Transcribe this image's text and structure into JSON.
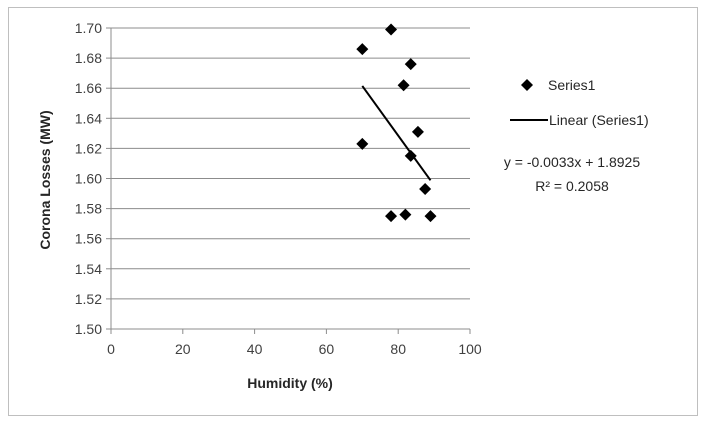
{
  "chart_data": {
    "type": "scatter",
    "xlabel": "Humidity (%)",
    "ylabel": "Corona Losses (MW)",
    "xlim": [
      0,
      100
    ],
    "ylim": [
      1.5,
      1.7
    ],
    "xticks": [
      0,
      20,
      40,
      60,
      80,
      100
    ],
    "xtick_labels": [
      "0",
      "20",
      "40",
      "60",
      "80",
      "100"
    ],
    "yticks": [
      1.5,
      1.52,
      1.54,
      1.56,
      1.58,
      1.6,
      1.62,
      1.64,
      1.66,
      1.68,
      1.7
    ],
    "ytick_labels": [
      "1.50",
      "1.52",
      "1.54",
      "1.56",
      "1.58",
      "1.60",
      "1.62",
      "1.64",
      "1.66",
      "1.68",
      "1.70"
    ],
    "grid": "horizontal",
    "legend_position": "right",
    "series": [
      {
        "name": "Series1",
        "marker": "diamond",
        "color": "#000000",
        "points": [
          {
            "x": 70,
            "y": 1.686
          },
          {
            "x": 78,
            "y": 1.699
          },
          {
            "x": 83.5,
            "y": 1.676
          },
          {
            "x": 81.5,
            "y": 1.662
          },
          {
            "x": 85.5,
            "y": 1.631
          },
          {
            "x": 70,
            "y": 1.623
          },
          {
            "x": 83.5,
            "y": 1.615
          },
          {
            "x": 87.5,
            "y": 1.593
          },
          {
            "x": 78,
            "y": 1.575
          },
          {
            "x": 82,
            "y": 1.576
          },
          {
            "x": 89,
            "y": 1.575
          }
        ]
      }
    ],
    "trendline": {
      "name": "Linear (Series1)",
      "type": "linear",
      "color": "#000000",
      "x_range": [
        70,
        89
      ],
      "slope": -0.0033,
      "intercept": 1.8925,
      "equation": "y = -0.0033x + 1.8925",
      "r_squared": "R² = 0.2058"
    }
  }
}
